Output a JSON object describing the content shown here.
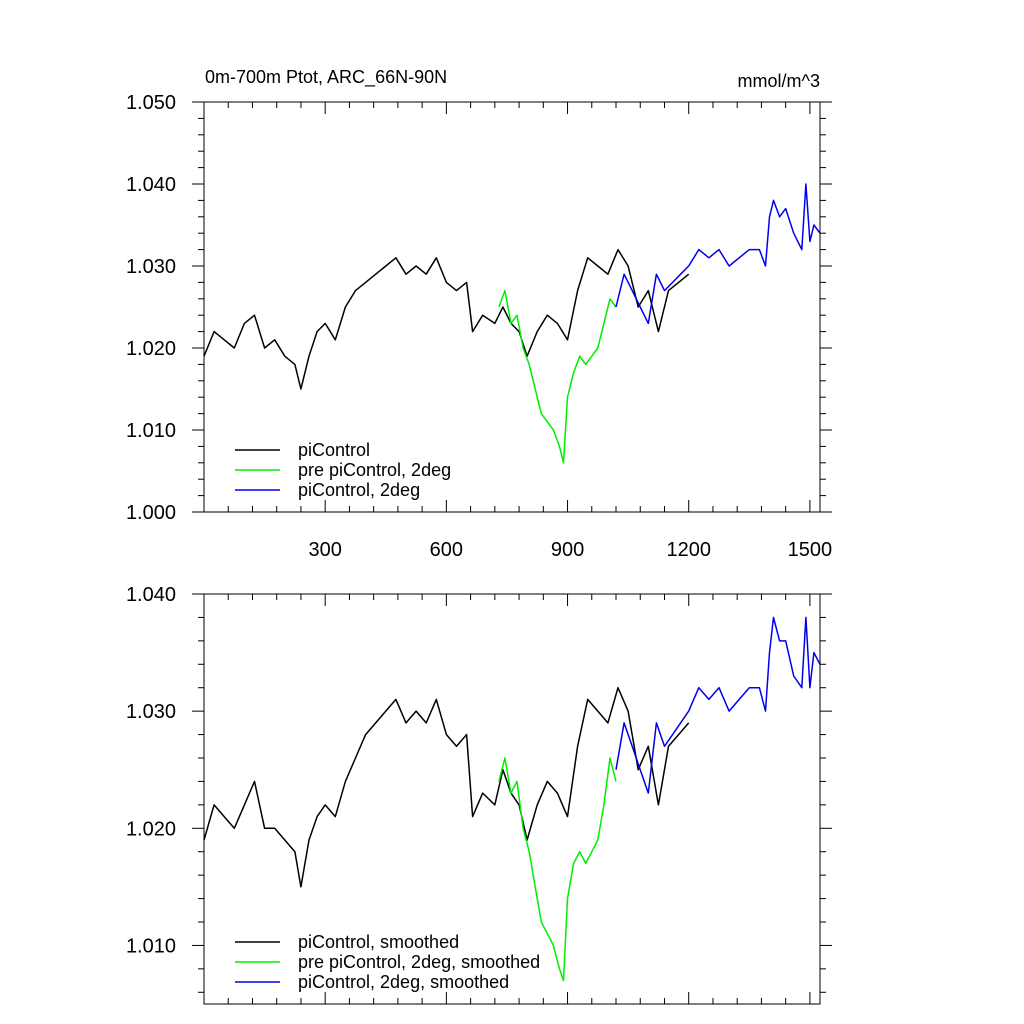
{
  "chart_data": [
    {
      "type": "line",
      "title": "0m-700m Ptot, ARC_66N-90N",
      "units": "mmol/m^3",
      "xlim": [
        0,
        1525
      ],
      "ylim": [
        1.0,
        1.05
      ],
      "xticks": [
        300,
        600,
        900,
        1200,
        1500
      ],
      "xtick_labels": [
        "300",
        "600",
        "900",
        "1200",
        "1500"
      ],
      "yticks": [
        1.0,
        1.01,
        1.02,
        1.03,
        1.04,
        1.05
      ],
      "ytick_labels": [
        "1.000",
        "1.010",
        "1.020",
        "1.030",
        "1.040",
        "1.050"
      ],
      "legend_position": "bottom-left",
      "series": [
        {
          "name": "piControl",
          "color": "#000000",
          "x": [
            0,
            25,
            50,
            75,
            100,
            125,
            150,
            175,
            200,
            225,
            240,
            260,
            280,
            300,
            325,
            350,
            375,
            400,
            425,
            450,
            475,
            500,
            525,
            550,
            575,
            600,
            625,
            650,
            665,
            690,
            720,
            740,
            760,
            780,
            800,
            825,
            850,
            875,
            900,
            925,
            950,
            975,
            1000,
            1025,
            1050,
            1075,
            1100,
            1125,
            1150,
            1175,
            1200
          ],
          "values": [
            1.019,
            1.022,
            1.021,
            1.02,
            1.023,
            1.024,
            1.02,
            1.021,
            1.019,
            1.018,
            1.015,
            1.019,
            1.022,
            1.023,
            1.021,
            1.025,
            1.027,
            1.028,
            1.029,
            1.03,
            1.031,
            1.029,
            1.03,
            1.029,
            1.031,
            1.028,
            1.027,
            1.028,
            1.022,
            1.024,
            1.023,
            1.025,
            1.023,
            1.022,
            1.019,
            1.022,
            1.024,
            1.023,
            1.021,
            1.027,
            1.031,
            1.03,
            1.029,
            1.032,
            1.03,
            1.025,
            1.027,
            1.022,
            1.027,
            1.028,
            1.029
          ]
        },
        {
          "name": "pre piControl, 2deg",
          "color": "#00ee00",
          "x": [
            730,
            745,
            760,
            775,
            790,
            805,
            820,
            835,
            850,
            865,
            880,
            890,
            900,
            915,
            930,
            945,
            960,
            975,
            990,
            1005,
            1020
          ],
          "values": [
            1.025,
            1.027,
            1.023,
            1.024,
            1.02,
            1.018,
            1.015,
            1.012,
            1.011,
            1.01,
            1.008,
            1.006,
            1.014,
            1.017,
            1.019,
            1.018,
            1.019,
            1.02,
            1.023,
            1.026,
            1.025
          ]
        },
        {
          "name": "piControl, 2deg",
          "color": "#0000ee",
          "x": [
            1020,
            1040,
            1060,
            1080,
            1100,
            1120,
            1140,
            1160,
            1180,
            1200,
            1225,
            1250,
            1275,
            1300,
            1325,
            1350,
            1375,
            1390,
            1400,
            1410,
            1425,
            1440,
            1460,
            1480,
            1490,
            1500,
            1510,
            1525
          ],
          "values": [
            1.025,
            1.029,
            1.027,
            1.025,
            1.023,
            1.029,
            1.027,
            1.028,
            1.029,
            1.03,
            1.032,
            1.031,
            1.032,
            1.03,
            1.031,
            1.032,
            1.032,
            1.03,
            1.036,
            1.038,
            1.036,
            1.037,
            1.034,
            1.032,
            1.04,
            1.033,
            1.035,
            1.034
          ]
        }
      ]
    },
    {
      "type": "line",
      "title": "",
      "units": "",
      "xlim": [
        0,
        1525
      ],
      "ylim": [
        1.005,
        1.04
      ],
      "xticks": [
        300,
        600,
        900,
        1200,
        1500
      ],
      "xtick_labels": [],
      "yticks": [
        1.01,
        1.02,
        1.03,
        1.04
      ],
      "ytick_labels": [
        "1.010",
        "1.020",
        "1.030",
        "1.040"
      ],
      "legend_position": "bottom-left",
      "series": [
        {
          "name": "piControl, smoothed",
          "color": "#000000",
          "x": [
            0,
            25,
            50,
            75,
            100,
            125,
            150,
            175,
            200,
            225,
            240,
            260,
            280,
            300,
            325,
            350,
            375,
            400,
            425,
            450,
            475,
            500,
            525,
            550,
            575,
            600,
            625,
            650,
            665,
            690,
            720,
            740,
            760,
            780,
            800,
            825,
            850,
            875,
            900,
            925,
            950,
            975,
            1000,
            1025,
            1050,
            1075,
            1100,
            1125,
            1150,
            1175,
            1200
          ],
          "values": [
            1.019,
            1.022,
            1.021,
            1.02,
            1.022,
            1.024,
            1.02,
            1.02,
            1.019,
            1.018,
            1.015,
            1.019,
            1.021,
            1.022,
            1.021,
            1.024,
            1.026,
            1.028,
            1.029,
            1.03,
            1.031,
            1.029,
            1.03,
            1.029,
            1.031,
            1.028,
            1.027,
            1.028,
            1.021,
            1.023,
            1.022,
            1.025,
            1.023,
            1.022,
            1.019,
            1.022,
            1.024,
            1.023,
            1.021,
            1.027,
            1.031,
            1.03,
            1.029,
            1.032,
            1.03,
            1.025,
            1.027,
            1.022,
            1.027,
            1.028,
            1.029
          ]
        },
        {
          "name": "pre piControl, 2deg, smoothed",
          "color": "#00ee00",
          "x": [
            730,
            745,
            760,
            775,
            790,
            805,
            820,
            835,
            850,
            865,
            880,
            890,
            900,
            915,
            930,
            945,
            960,
            975,
            990,
            1005,
            1020
          ],
          "values": [
            1.024,
            1.026,
            1.023,
            1.024,
            1.02,
            1.018,
            1.015,
            1.012,
            1.011,
            1.01,
            1.008,
            1.007,
            1.014,
            1.017,
            1.018,
            1.017,
            1.018,
            1.019,
            1.022,
            1.026,
            1.024
          ]
        },
        {
          "name": "piControl, 2deg, smoothed",
          "color": "#0000ee",
          "x": [
            1020,
            1040,
            1060,
            1080,
            1100,
            1120,
            1140,
            1160,
            1180,
            1200,
            1225,
            1250,
            1275,
            1300,
            1325,
            1350,
            1375,
            1390,
            1400,
            1410,
            1425,
            1440,
            1460,
            1480,
            1490,
            1500,
            1510,
            1525
          ],
          "values": [
            1.025,
            1.029,
            1.027,
            1.025,
            1.023,
            1.029,
            1.027,
            1.028,
            1.029,
            1.03,
            1.032,
            1.031,
            1.032,
            1.03,
            1.031,
            1.032,
            1.032,
            1.03,
            1.035,
            1.038,
            1.036,
            1.036,
            1.033,
            1.032,
            1.038,
            1.032,
            1.035,
            1.034
          ]
        }
      ]
    }
  ]
}
